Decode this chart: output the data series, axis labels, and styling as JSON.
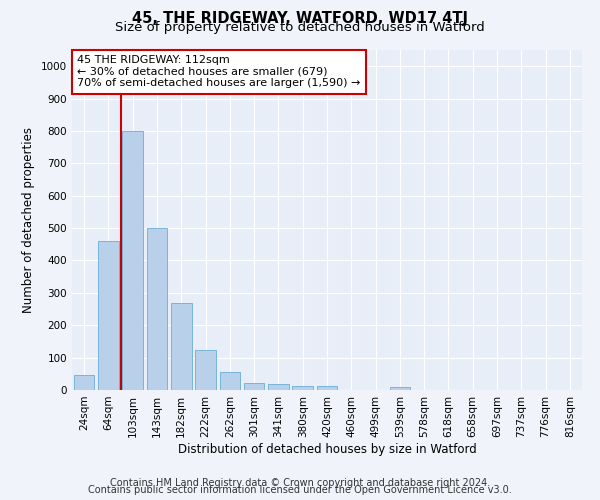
{
  "title": "45, THE RIDGEWAY, WATFORD, WD17 4TJ",
  "subtitle": "Size of property relative to detached houses in Watford",
  "xlabel": "Distribution of detached houses by size in Watford",
  "ylabel": "Number of detached properties",
  "categories": [
    "24sqm",
    "64sqm",
    "103sqm",
    "143sqm",
    "182sqm",
    "222sqm",
    "262sqm",
    "301sqm",
    "341sqm",
    "380sqm",
    "420sqm",
    "460sqm",
    "499sqm",
    "539sqm",
    "578sqm",
    "618sqm",
    "658sqm",
    "697sqm",
    "737sqm",
    "776sqm",
    "816sqm"
  ],
  "values": [
    45,
    460,
    800,
    500,
    270,
    125,
    55,
    22,
    18,
    12,
    13,
    0,
    0,
    10,
    0,
    0,
    0,
    0,
    0,
    0,
    0
  ],
  "bar_color": "#b8d0ea",
  "bar_edge_color": "#6aaed6",
  "vline_x": 1.5,
  "vline_color": "#cc0000",
  "annotation_text": "45 THE RIDGEWAY: 112sqm\n← 30% of detached houses are smaller (679)\n70% of semi-detached houses are larger (1,590) →",
  "annotation_box_color": "#ffffff",
  "annotation_box_edge": "#cc0000",
  "ylim": [
    0,
    1050
  ],
  "yticks": [
    0,
    100,
    200,
    300,
    400,
    500,
    600,
    700,
    800,
    900,
    1000
  ],
  "footer1": "Contains HM Land Registry data © Crown copyright and database right 2024.",
  "footer2": "Contains public sector information licensed under the Open Government Licence v3.0.",
  "bg_color": "#f0f4fa",
  "plot_bg_color": "#e8eef8",
  "grid_color": "#ffffff",
  "title_fontsize": 10.5,
  "subtitle_fontsize": 9.5,
  "axis_label_fontsize": 8.5,
  "tick_fontsize": 7.5,
  "annotation_fontsize": 8,
  "footer_fontsize": 7
}
